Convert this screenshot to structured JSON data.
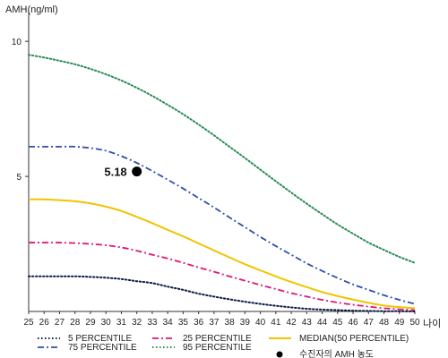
{
  "chart_data": {
    "type": "line",
    "ylabel": "AMH(ng/ml)",
    "xlabel": "나이",
    "x": [
      25,
      26,
      27,
      28,
      29,
      30,
      31,
      32,
      33,
      34,
      35,
      36,
      37,
      38,
      39,
      40,
      41,
      42,
      43,
      44,
      45,
      46,
      47,
      48,
      49,
      50
    ],
    "xlim": [
      25,
      50
    ],
    "ylim": [
      0,
      11
    ],
    "y_ticks": [
      5,
      10
    ],
    "grid": false,
    "legend_position": "bottom",
    "series": [
      {
        "name": "5 PERCENTILE",
        "color": "#0d1a4a",
        "style": "dotted",
        "values": [
          1.3,
          1.3,
          1.3,
          1.3,
          1.28,
          1.25,
          1.2,
          1.12,
          1.05,
          0.92,
          0.8,
          0.66,
          0.55,
          0.45,
          0.36,
          0.28,
          0.21,
          0.15,
          0.1,
          0.07,
          0.05,
          0.03,
          0.02,
          0.01,
          0.01,
          0.0
        ]
      },
      {
        "name": "25 PERCENTILE",
        "color": "#e0157a",
        "style": "dashdot",
        "values": [
          2.55,
          2.55,
          2.55,
          2.53,
          2.5,
          2.45,
          2.37,
          2.25,
          2.1,
          1.96,
          1.8,
          1.63,
          1.47,
          1.3,
          1.14,
          0.98,
          0.83,
          0.68,
          0.55,
          0.43,
          0.33,
          0.25,
          0.18,
          0.12,
          0.08,
          0.05
        ]
      },
      {
        "name": "MEDIAN(50 PERCENTILE)",
        "color": "#f2c300",
        "style": "solid",
        "values": [
          4.15,
          4.15,
          4.12,
          4.08,
          4.0,
          3.88,
          3.72,
          3.5,
          3.27,
          3.02,
          2.78,
          2.52,
          2.26,
          2.0,
          1.75,
          1.52,
          1.3,
          1.09,
          0.9,
          0.72,
          0.57,
          0.44,
          0.32,
          0.22,
          0.16,
          0.12
        ]
      },
      {
        "name": "75 PERCENTILE",
        "color": "#2f4fae",
        "style": "dashdot",
        "values": [
          6.1,
          6.1,
          6.1,
          6.1,
          6.05,
          5.95,
          5.75,
          5.5,
          5.2,
          4.88,
          4.55,
          4.2,
          3.85,
          3.48,
          3.12,
          2.76,
          2.42,
          2.1,
          1.78,
          1.5,
          1.24,
          1.0,
          0.8,
          0.6,
          0.43,
          0.28
        ]
      },
      {
        "name": "95 PERCENTILE",
        "color": "#2a8a55",
        "style": "dotted",
        "values": [
          9.5,
          9.4,
          9.28,
          9.15,
          8.98,
          8.78,
          8.55,
          8.28,
          7.98,
          7.65,
          7.3,
          6.92,
          6.52,
          6.1,
          5.68,
          5.25,
          4.82,
          4.4,
          3.99,
          3.6,
          3.22,
          2.88,
          2.55,
          2.28,
          2.02,
          1.8
        ]
      }
    ],
    "point": {
      "name": "수진자의 AMH 농도",
      "x": 32,
      "y": 5.18,
      "label": "5.18",
      "color": "#000000"
    }
  }
}
